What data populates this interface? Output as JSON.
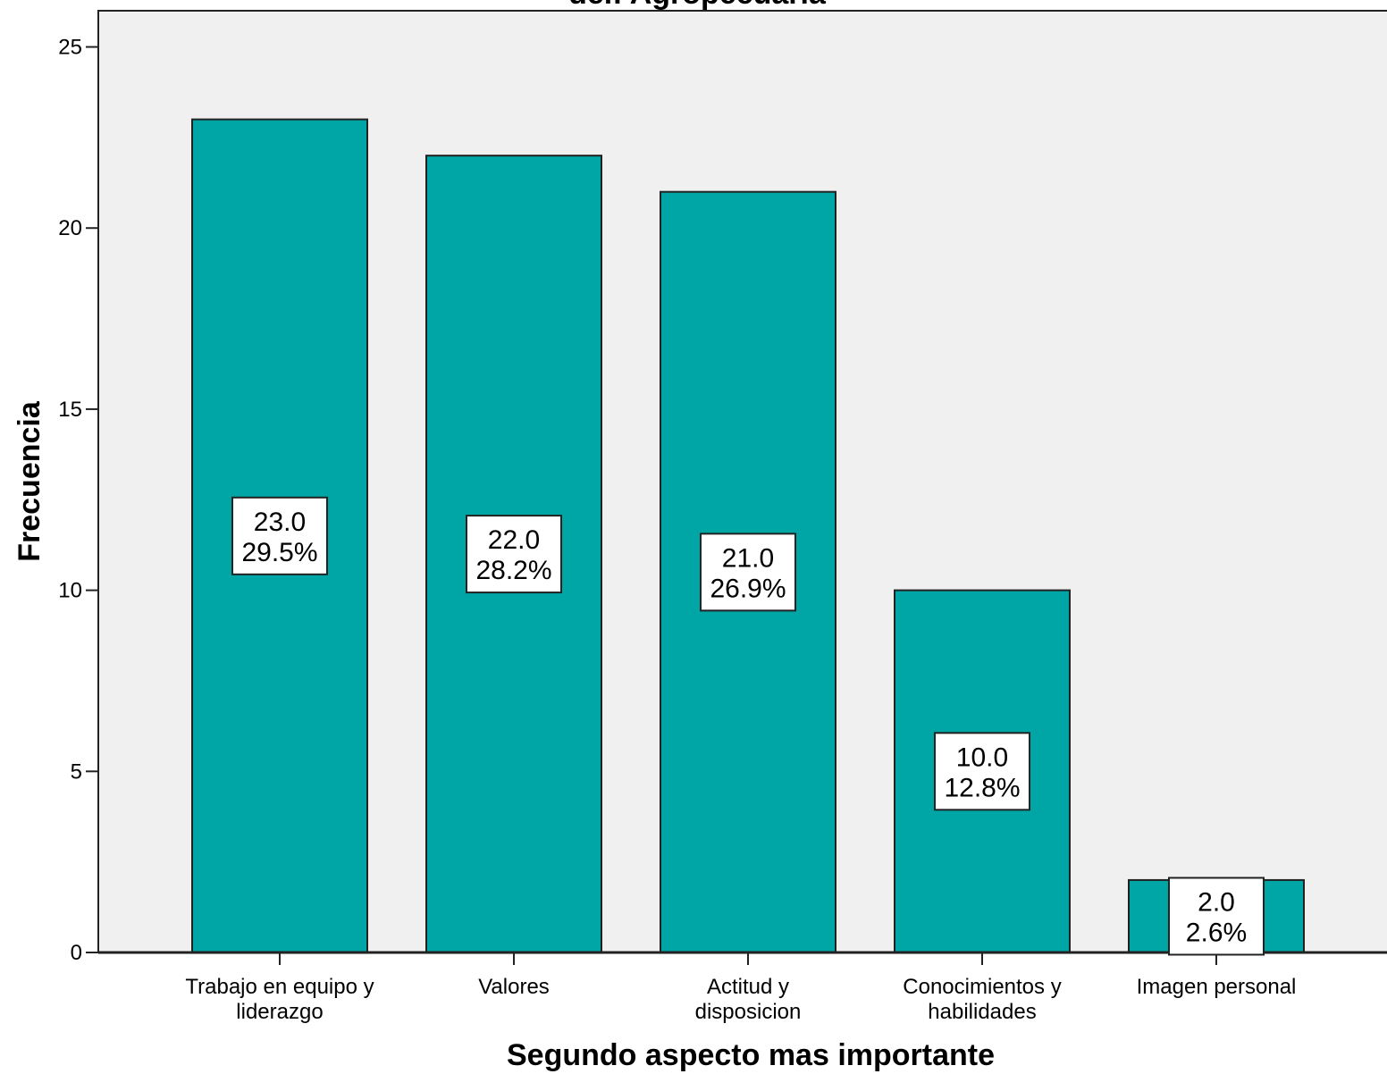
{
  "chart_data": {
    "type": "bar",
    "title": "del: Agropecuaria",
    "xlabel": "Segundo aspecto mas importante",
    "ylabel": "Frecuencia",
    "categories": [
      [
        "Trabajo en equipo y",
        "liderazgo"
      ],
      [
        "Valores"
      ],
      [
        "Actitud y",
        "disposicion"
      ],
      [
        "Conocimientos y",
        "habilidades"
      ],
      [
        "Imagen personal"
      ]
    ],
    "values": [
      23,
      22,
      21,
      10,
      2
    ],
    "data_labels": [
      [
        "23.0",
        "29.5%"
      ],
      [
        "22.0",
        "28.2%"
      ],
      [
        "21.0",
        "26.9%"
      ],
      [
        "10.0",
        "12.8%"
      ],
      [
        "2.0",
        "2.6%"
      ]
    ],
    "ylim": [
      0,
      26
    ],
    "yticks": [
      0,
      5,
      10,
      15,
      20,
      25
    ],
    "grid": false,
    "bar_color": "#00a5a5",
    "plot_background": "#f0f0f0"
  }
}
